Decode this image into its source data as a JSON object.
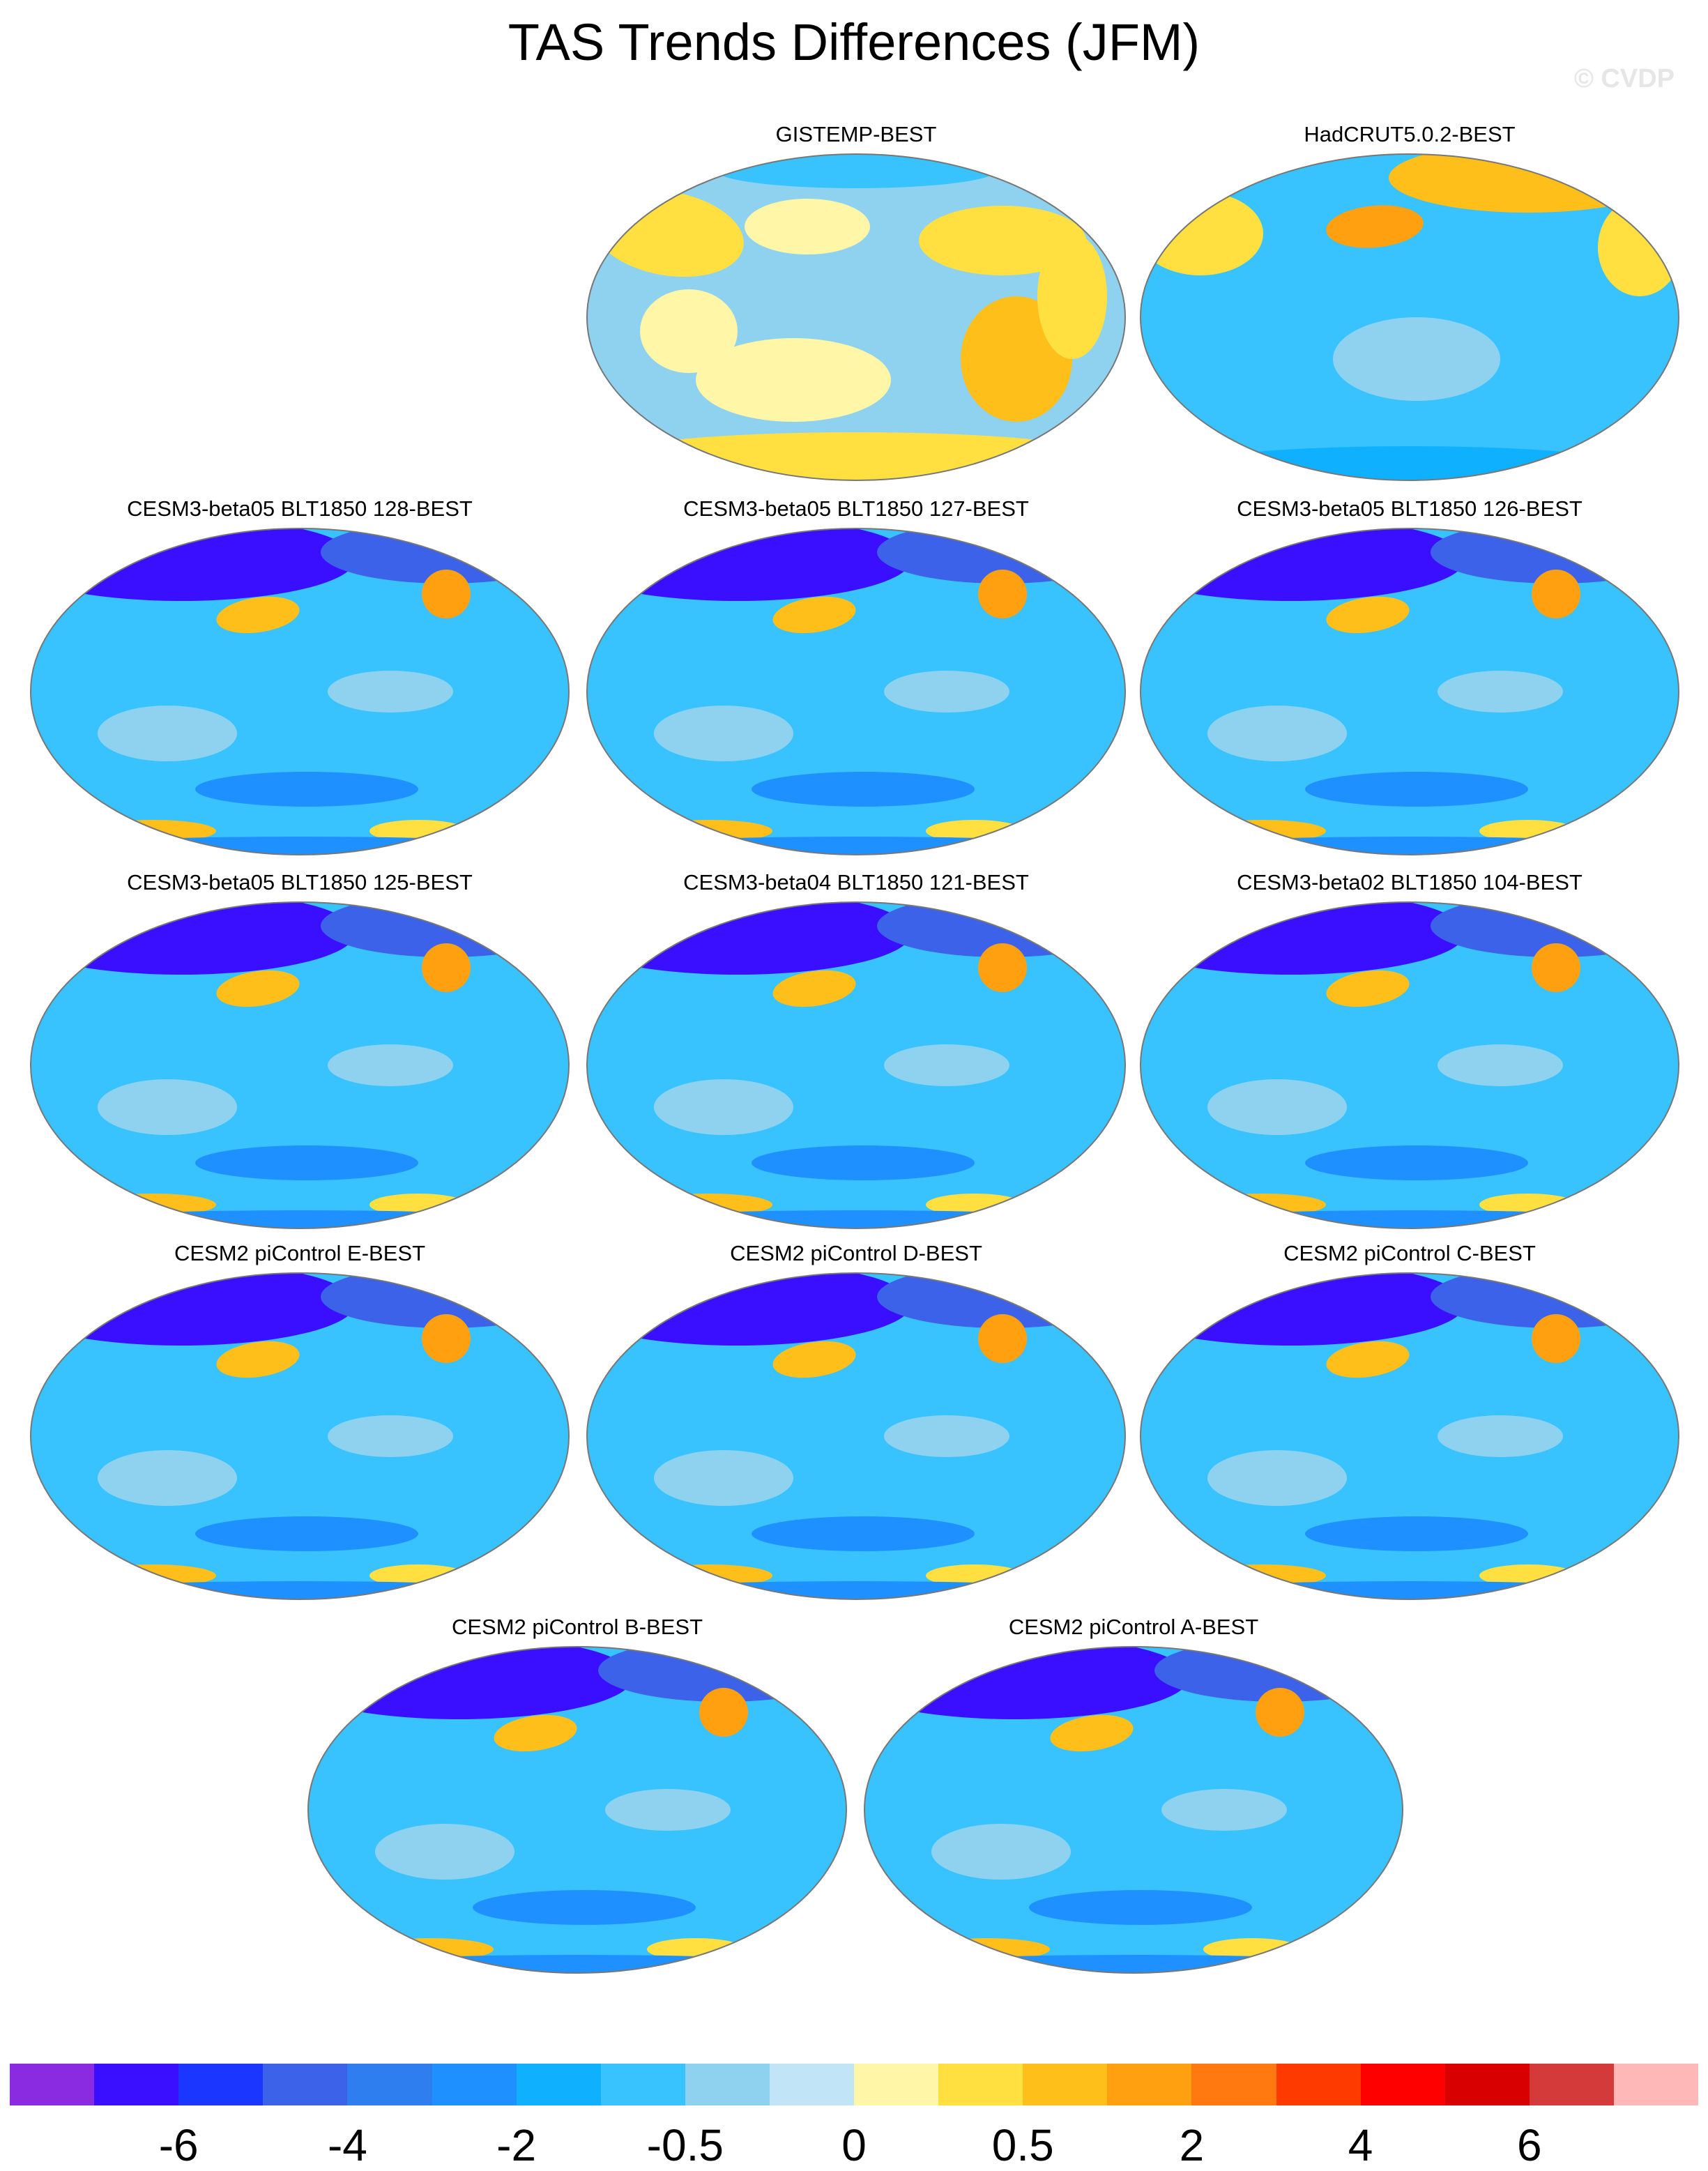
{
  "title": "TAS Trends Differences (JFM)",
  "watermark": "© CVDP",
  "panels": [
    {
      "title": "GISTEMP-BEST",
      "palette": "warm"
    },
    {
      "title": "HadCRUT5.0.2-BEST",
      "palette": "mixed"
    },
    {
      "title": "CESM3-beta05 BLT1850 128-BEST",
      "palette": "cool"
    },
    {
      "title": "CESM3-beta05 BLT1850 127-BEST",
      "palette": "cool"
    },
    {
      "title": "CESM3-beta05 BLT1850 126-BEST",
      "palette": "cool"
    },
    {
      "title": "CESM3-beta05 BLT1850 125-BEST",
      "palette": "cool"
    },
    {
      "title": "CESM3-beta04 BLT1850 121-BEST",
      "palette": "cool"
    },
    {
      "title": "CESM3-beta02 BLT1850 104-BEST",
      "palette": "cool"
    },
    {
      "title": "CESM2 piControl E-BEST",
      "palette": "cool"
    },
    {
      "title": "CESM2 piControl D-BEST",
      "palette": "cool"
    },
    {
      "title": "CESM2 piControl C-BEST",
      "palette": "cool"
    },
    {
      "title": "CESM2 piControl B-BEST",
      "palette": "cool"
    },
    {
      "title": "CESM2 piControl A-BEST",
      "palette": "cool"
    }
  ],
  "colorbar": {
    "colors": [
      "#8a2be2",
      "#3a0fff",
      "#1a36ff",
      "#3b62e8",
      "#2f7ef0",
      "#1e90ff",
      "#0fb1ff",
      "#38c3ff",
      "#8fd2f0",
      "#c2e4f7",
      "#fff6a8",
      "#ffe040",
      "#ffbf1a",
      "#ffa010",
      "#ff7810",
      "#ff3a00",
      "#ff0000",
      "#d80000",
      "#d43a3a",
      "#ffb8b8"
    ],
    "labels": [
      "-6",
      "-4",
      "-2",
      "-0.5",
      "0",
      "0.5",
      "2",
      "4",
      "6"
    ]
  }
}
